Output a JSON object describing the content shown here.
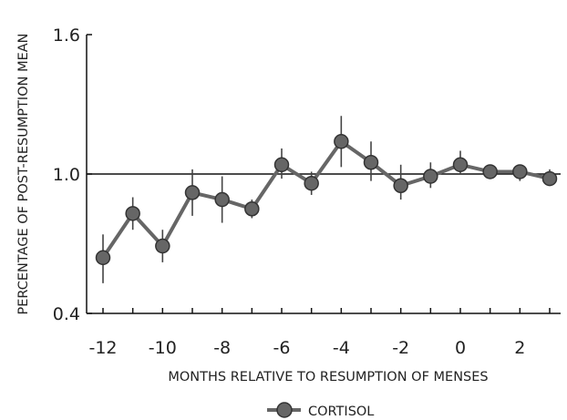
{
  "chart_data": {
    "type": "line",
    "xlabel": "MONTHS RELATIVE TO RESUMPTION OF MENSES",
    "ylabel": "PERCENTAGE OF POST-RESUMPTION MEAN",
    "xlim": [
      -12.5,
      3.3
    ],
    "ylim": [
      0.4,
      1.6
    ],
    "x_ticks": [
      -12,
      -10,
      -8,
      -6,
      -4,
      -2,
      0,
      2
    ],
    "x_tick_labels": [
      "-12",
      "-10",
      "-8",
      "-6",
      "-4",
      "-2",
      "0",
      "2"
    ],
    "y_ticks": [
      0.4,
      1.0,
      1.6
    ],
    "y_tick_labels": [
      "0.4",
      "1.0",
      "1.6"
    ],
    "reference_line": 1.0,
    "grid": false,
    "legend_position": "bottom-center",
    "series": [
      {
        "name": "CORTISOL",
        "color": "#666666",
        "x": [
          -12,
          -11,
          -10,
          -9,
          -8,
          -7,
          -6,
          -5,
          -4,
          -3,
          -2,
          -1,
          0,
          1,
          2,
          3
        ],
        "y": [
          0.64,
          0.83,
          0.69,
          0.92,
          0.89,
          0.85,
          1.04,
          0.96,
          1.14,
          1.05,
          0.95,
          0.99,
          1.04,
          1.01,
          1.01,
          0.98
        ],
        "err_low": [
          0.53,
          0.76,
          0.62,
          0.82,
          0.79,
          0.81,
          0.98,
          0.91,
          1.03,
          0.97,
          0.89,
          0.94,
          1.0,
          0.98,
          0.97,
          0.95
        ],
        "err_high": [
          0.74,
          0.9,
          0.76,
          1.02,
          0.99,
          0.89,
          1.11,
          1.01,
          1.25,
          1.14,
          1.04,
          1.05,
          1.1,
          1.04,
          1.04,
          1.02
        ]
      }
    ]
  },
  "legend": {
    "label": "CORTISOL"
  }
}
